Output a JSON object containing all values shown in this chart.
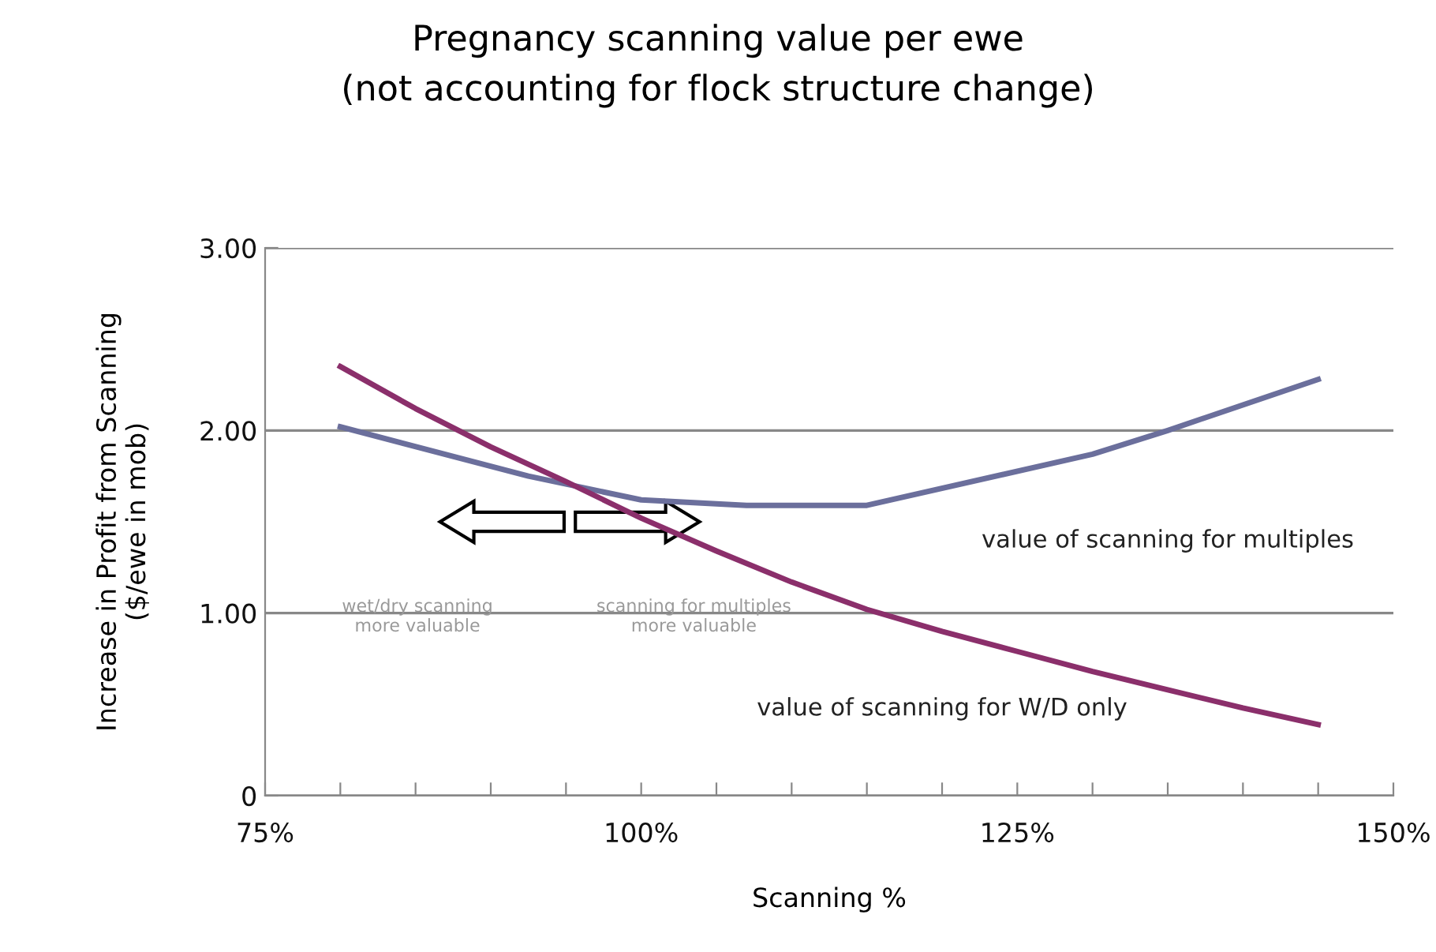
{
  "chart_data": {
    "type": "line",
    "title": "Pregnancy scanning value per ewe\n(not accounting for flock structure change)",
    "xlabel": "Scanning %",
    "ylabel": "Increase in Profit from Scanning\n($/ewe in mob)",
    "xlim": [
      75,
      150
    ],
    "xticks": [
      {
        "value": 75,
        "label": "75%"
      },
      {
        "value": 80,
        "label": null
      },
      {
        "value": 85,
        "label": null
      },
      {
        "value": 90,
        "label": null
      },
      {
        "value": 95,
        "label": null
      },
      {
        "value": 100,
        "label": "100%"
      },
      {
        "value": 105,
        "label": null
      },
      {
        "value": 110,
        "label": null
      },
      {
        "value": 115,
        "label": null
      },
      {
        "value": 120,
        "label": null
      },
      {
        "value": 125,
        "label": "125%"
      },
      {
        "value": 130,
        "label": null
      },
      {
        "value": 135,
        "label": null
      },
      {
        "value": 140,
        "label": null
      },
      {
        "value": 145,
        "label": null
      },
      {
        "value": 150,
        "label": "150%"
      }
    ],
    "ylim": [
      0,
      3
    ],
    "yticks": [
      0,
      {
        "value": 1,
        "label": "1.00"
      },
      {
        "value": 2,
        "label": "2.00"
      },
      {
        "value": 3,
        "label": "3.00"
      }
    ],
    "grid": "y",
    "marker": "none",
    "line_style": "solid",
    "series": [
      {
        "name": "value of scanning for multiples",
        "color": "#6b6f9c",
        "x": [
          80,
          92.5,
          100,
          107,
          115,
          130,
          135,
          145
        ],
        "values": [
          2.02,
          1.75,
          1.62,
          1.59,
          1.59,
          1.87,
          2.0,
          2.28
        ]
      },
      {
        "name": "value of scanning for W/D only",
        "color": "#8b2f6b",
        "x": [
          80,
          85,
          90,
          95,
          100,
          105,
          110,
          115,
          120,
          125,
          130,
          135,
          140,
          145
        ],
        "values": [
          2.35,
          2.12,
          1.91,
          1.72,
          1.52,
          1.34,
          1.17,
          1.02,
          0.9,
          0.79,
          0.68,
          0.58,
          0.48,
          0.39
        ]
      }
    ],
    "annotations": [
      "wet/dry scanning\nmore valuable",
      "scanning for multiples\nmore valuable"
    ]
  }
}
